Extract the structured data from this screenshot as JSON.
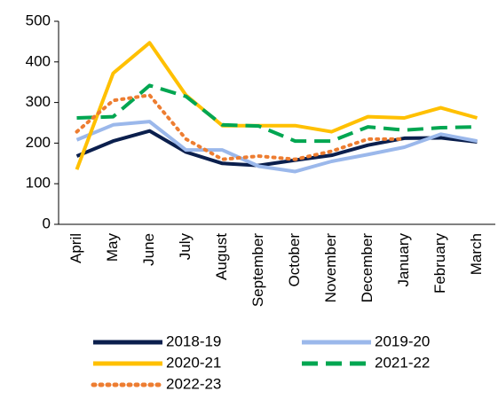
{
  "chart_data": {
    "type": "line",
    "categories": [
      "April",
      "May",
      "June",
      "July",
      "August",
      "September",
      "October",
      "November",
      "December",
      "January",
      "February",
      "March"
    ],
    "series": [
      {
        "name": "2018-19",
        "color": "#0b1f4d",
        "dash": "solid",
        "values": [
          168,
          205,
          230,
          178,
          150,
          145,
          158,
          170,
          195,
          212,
          213,
          203
        ]
      },
      {
        "name": "2019-20",
        "color": "#9bb8eb",
        "dash": "solid",
        "values": [
          208,
          245,
          253,
          183,
          183,
          143,
          130,
          155,
          172,
          190,
          222,
          205
        ]
      },
      {
        "name": "2020-21",
        "color": "#ffc000",
        "dash": "solid",
        "values": [
          135,
          372,
          447,
          318,
          243,
          243,
          243,
          228,
          265,
          262,
          287,
          262
        ]
      },
      {
        "name": "2021-22",
        "color": "#00a651",
        "dash": "dashed",
        "values": [
          262,
          265,
          342,
          315,
          245,
          242,
          205,
          205,
          240,
          232,
          238,
          240
        ]
      },
      {
        "name": "2022-23",
        "color": "#ed7d31",
        "dash": "dotted",
        "values": [
          228,
          305,
          318,
          210,
          160,
          168,
          160,
          180,
          210,
          210,
          null,
          null
        ]
      }
    ],
    "ylim": [
      0,
      500
    ],
    "yticks": [
      0,
      100,
      200,
      300,
      400,
      500
    ]
  }
}
